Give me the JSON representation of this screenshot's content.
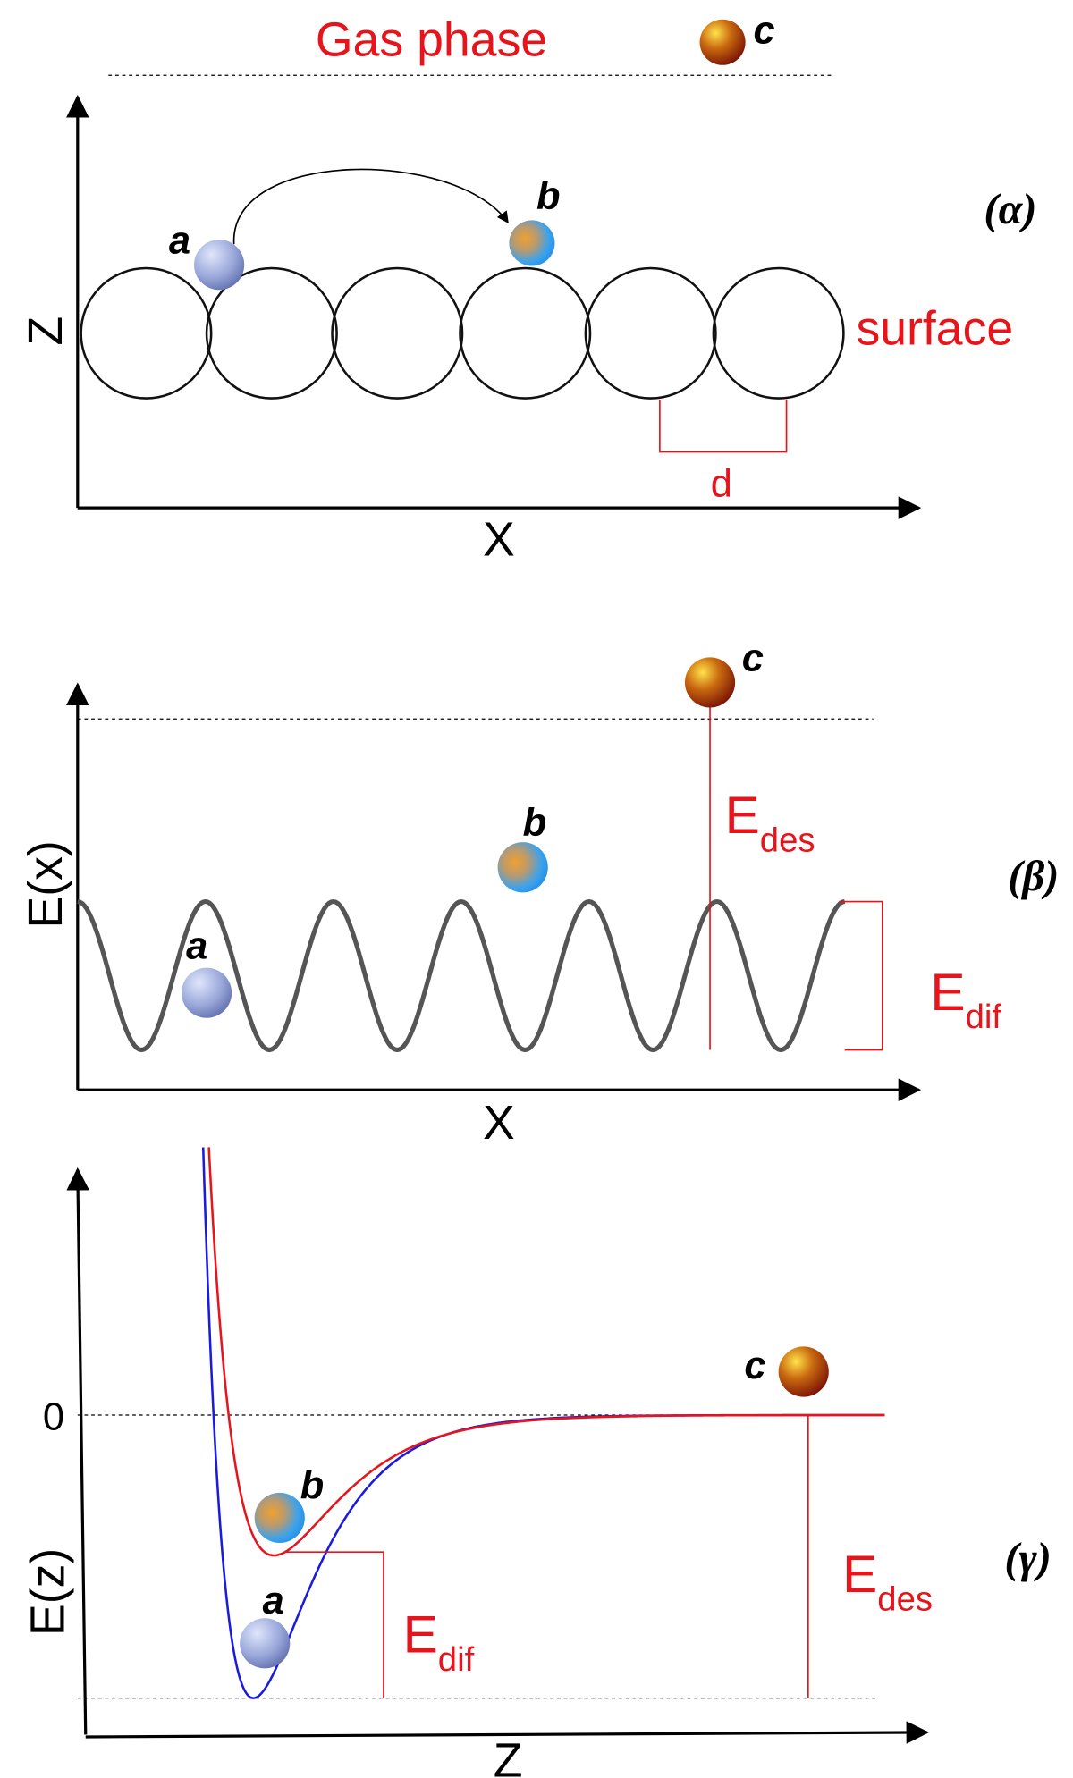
{
  "panel_alpha": {
    "title": "Gas phase",
    "particle_c": "c",
    "particle_a": "a",
    "particle_b": "b",
    "label": "(α)",
    "surface": "surface",
    "y_axis": "Z",
    "x_axis": "X",
    "spacing": "d"
  },
  "panel_beta": {
    "y_axis": "E(x)",
    "x_axis": "X",
    "particle_a": "a",
    "particle_b": "b",
    "particle_c": "c",
    "label": "(β)",
    "desorption": {
      "symbol": "E",
      "subscript": "des"
    },
    "diffusion": {
      "symbol": "E",
      "subscript": "dif"
    }
  },
  "panel_gamma": {
    "y_axis": "E(z)",
    "x_axis": "Z",
    "zero": "0",
    "particle_a": "a",
    "particle_b": "b",
    "particle_c": "c",
    "label": "(γ)",
    "desorption": {
      "symbol": "E",
      "subscript": "des"
    },
    "diffusion": {
      "symbol": "E",
      "subscript": "dif"
    }
  }
}
